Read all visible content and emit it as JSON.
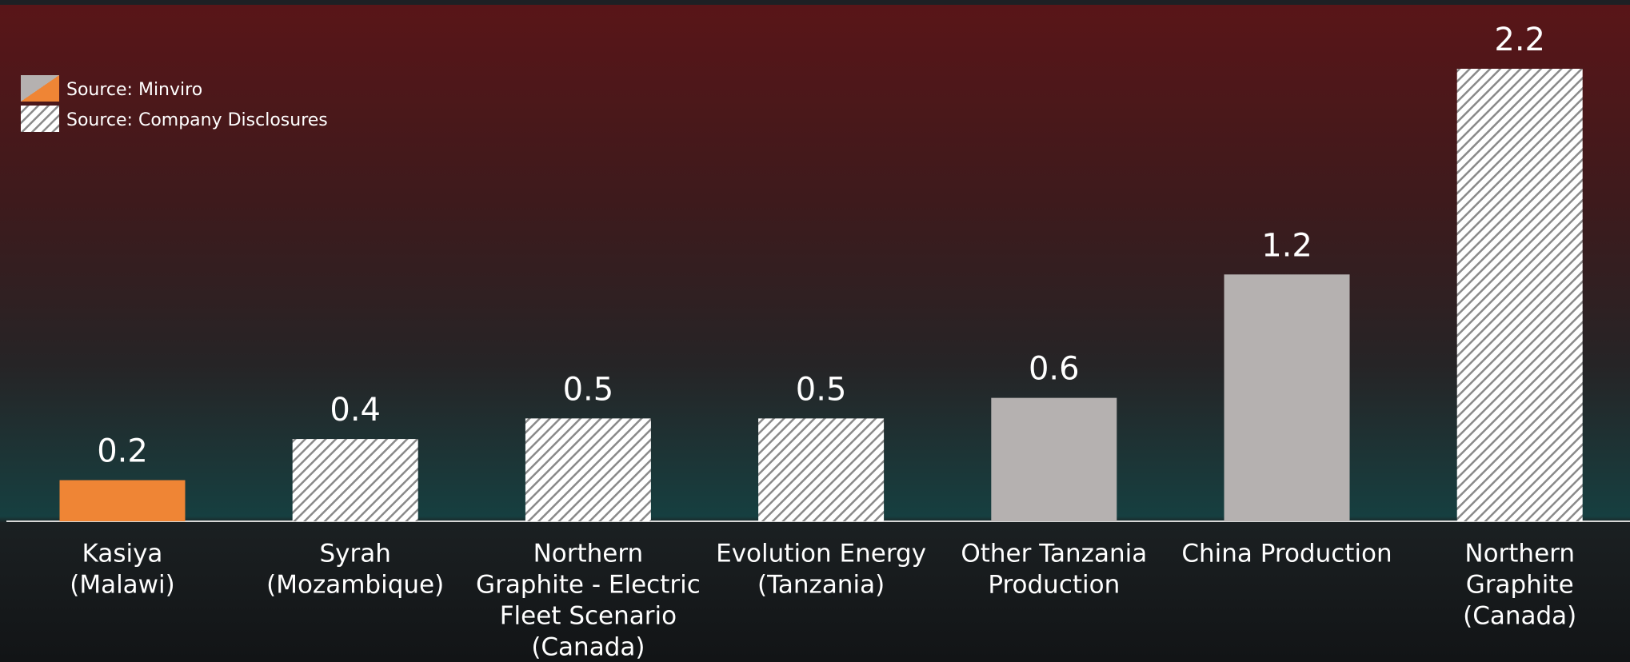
{
  "chart_data": {
    "type": "bar",
    "categories": [
      [
        "Kasiya",
        "(Malawi)"
      ],
      [
        "Syrah",
        "(Mozambique)"
      ],
      [
        "Northern",
        "Graphite - Electric",
        "Fleet Scenario",
        "(Canada)"
      ],
      [
        "Evolution Energy",
        "(Tanzania)"
      ],
      [
        "Other Tanzania",
        "Production"
      ],
      [
        "China Production"
      ],
      [
        "Northern",
        "Graphite",
        "(Canada)"
      ]
    ],
    "values": [
      0.2,
      0.4,
      0.5,
      0.5,
      0.6,
      1.2,
      2.2
    ],
    "colors": [
      "#ef8535",
      "#bdbab9",
      "#bdbab9",
      "#bdbab9",
      "#b5b1b0",
      "#b5b1b0",
      "#bdbab9"
    ],
    "hatched": [
      false,
      true,
      true,
      true,
      false,
      false,
      true
    ],
    "ylim": [
      0,
      2.2
    ],
    "legend": [
      {
        "label": "Source: Minviro",
        "colors": [
          "#ef8535",
          "#b5b1b0"
        ],
        "hatched": false
      },
      {
        "label": "Source: Company Disclosures",
        "colors": [
          "#bdbab9"
        ],
        "hatched": true
      }
    ]
  }
}
